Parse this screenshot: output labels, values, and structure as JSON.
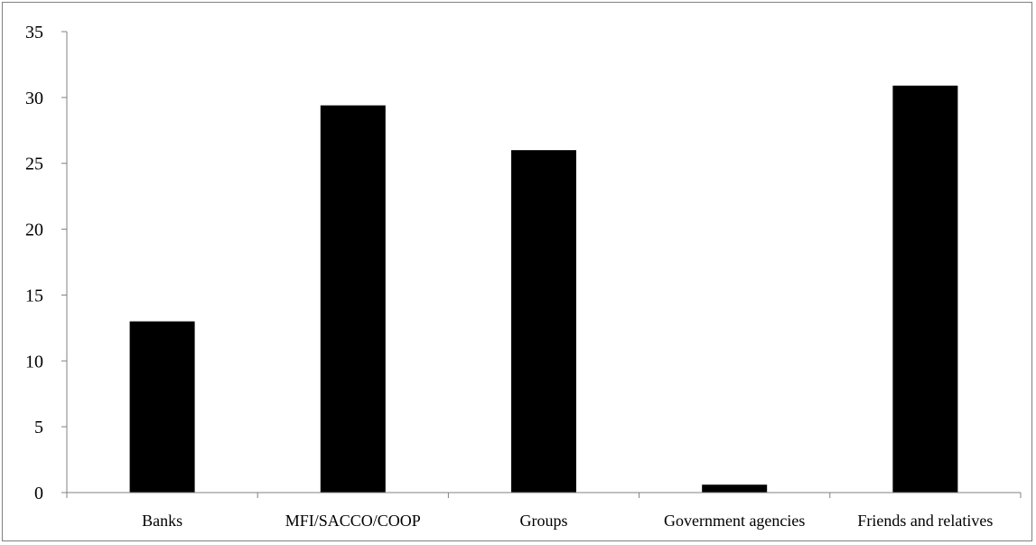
{
  "chart_data": {
    "type": "bar",
    "title": "",
    "xlabel": "",
    "ylabel": "",
    "categories": [
      "Banks",
      "MFI/SACCO/COOP",
      "Groups",
      "Government agencies",
      "Friends and relatives"
    ],
    "values": [
      13,
      29.4,
      26,
      0.6,
      30.9
    ],
    "ylim": [
      0,
      35
    ],
    "yticks": [
      "0",
      "5",
      "10",
      "15",
      "20",
      "25",
      "30",
      "35"
    ],
    "grid": false,
    "legend": "none",
    "bar_color": "#000000",
    "axis_color": "#808080"
  }
}
